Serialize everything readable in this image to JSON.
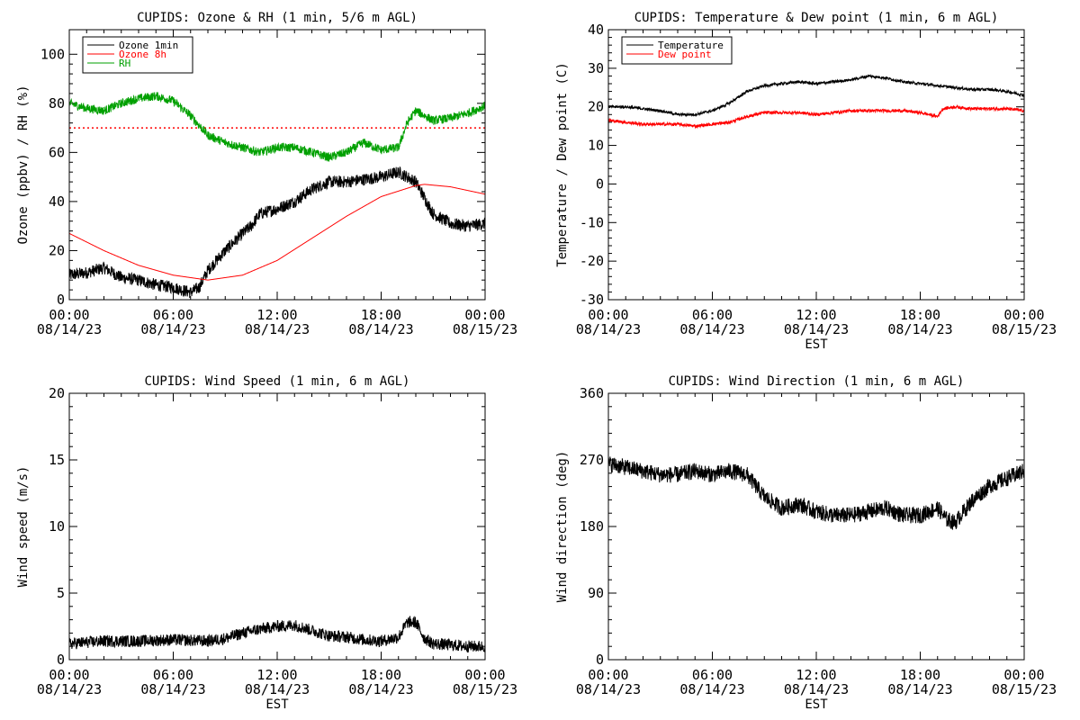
{
  "chart_data": [
    {
      "type": "line",
      "title": "CUPIDS: Ozone & RH (1 min, 5/6 m AGL)",
      "ylabel": "Ozone (ppbv) / RH (%)",
      "xlabel": "",
      "ylim": [
        0,
        110
      ],
      "yticks": [
        0,
        20,
        40,
        60,
        80,
        100
      ],
      "xticks": [
        "00:00\n08/14/23",
        "06:00\n08/14/23",
        "12:00\n08/14/23",
        "18:00\n08/14/23",
        "00:00\n08/15/23"
      ],
      "legend": "top-left",
      "reference_line": {
        "y": 70,
        "style": "dotted",
        "color": "#ff0000"
      },
      "series": [
        {
          "name": "Ozone 1min",
          "color": "#000000",
          "noise": 2.5,
          "x": [
            0,
            1,
            2,
            3,
            4,
            5,
            6,
            7,
            7.5,
            8,
            9,
            10,
            10.5,
            11,
            12,
            13,
            14,
            15,
            16,
            17,
            18,
            19,
            19.5,
            20,
            21,
            22,
            23,
            24
          ],
          "y": [
            10,
            11,
            13,
            9,
            8,
            6,
            5,
            3,
            5,
            12,
            20,
            27,
            30,
            35,
            37,
            40,
            45,
            48,
            48,
            49,
            50,
            52,
            50,
            48,
            35,
            31,
            30,
            31
          ]
        },
        {
          "name": "Ozone 8h",
          "color": "#ff0000",
          "noise": 0,
          "x": [
            0,
            2,
            4,
            6,
            8,
            10,
            12,
            14,
            16,
            18,
            20,
            20.5,
            22,
            24
          ],
          "y": [
            27,
            20,
            14,
            10,
            8,
            10,
            16,
            25,
            34,
            42,
            46.5,
            47,
            46,
            43
          ]
        },
        {
          "name": "RH",
          "color": "#00a000",
          "noise": 1.8,
          "x": [
            0,
            1,
            2,
            3,
            4,
            5,
            6,
            7,
            8,
            9,
            10,
            11,
            12,
            13,
            14,
            15,
            16,
            17,
            18,
            19,
            19.5,
            20,
            21,
            22,
            23,
            24
          ],
          "y": [
            80,
            78,
            77,
            80,
            82,
            83,
            81,
            75,
            67,
            64,
            62,
            60,
            62,
            62,
            60,
            58,
            60,
            64,
            61,
            62,
            72,
            77,
            73,
            74,
            76,
            79
          ]
        }
      ]
    },
    {
      "type": "line",
      "title": "CUPIDS: Temperature & Dew point (1 min, 6 m AGL)",
      "ylabel": "Temperature / Dew point (C)",
      "xlabel": "EST",
      "ylim": [
        -30,
        40
      ],
      "yticks": [
        -30,
        -20,
        -10,
        0,
        10,
        20,
        30,
        40
      ],
      "xticks": [
        "00:00\n08/14/23",
        "06:00\n08/14/23",
        "12:00\n08/14/23",
        "18:00\n08/14/23",
        "00:00\n08/15/23"
      ],
      "legend": "top-left",
      "series": [
        {
          "name": "Temperature",
          "color": "#000000",
          "noise": 0.35,
          "x": [
            0,
            1,
            2,
            3,
            4,
            5,
            6,
            7,
            8,
            9,
            10,
            11,
            12,
            13,
            14,
            15,
            16,
            17,
            18,
            19,
            20,
            21,
            22,
            23,
            24
          ],
          "y": [
            20,
            20,
            19.5,
            19,
            18,
            18,
            19,
            21,
            24,
            25.5,
            26,
            26.5,
            26,
            26.5,
            27,
            28,
            27.5,
            26.5,
            26,
            25.5,
            25,
            24.5,
            24.5,
            24,
            23
          ]
        },
        {
          "name": "Dew point",
          "color": "#ff0000",
          "noise": 0.4,
          "x": [
            0,
            1,
            2,
            3,
            4,
            5,
            6,
            7,
            8,
            9,
            10,
            11,
            12,
            13,
            14,
            15,
            16,
            17,
            18,
            19,
            19.3,
            20,
            21,
            22,
            23,
            24
          ],
          "y": [
            16.5,
            16,
            15.5,
            15.5,
            15.5,
            15,
            15.5,
            16,
            17.5,
            18.5,
            18.5,
            18.5,
            18,
            18.5,
            19,
            19,
            19,
            19,
            18.5,
            17.5,
            19.5,
            20,
            19.5,
            19.5,
            19.5,
            19
          ]
        }
      ]
    },
    {
      "type": "line",
      "title": "CUPIDS: Wind Speed (1 min, 6 m AGL)",
      "ylabel": "Wind speed (m/s)",
      "xlabel": "EST",
      "ylim": [
        0,
        20
      ],
      "yticks": [
        0,
        5,
        10,
        15,
        20
      ],
      "xticks": [
        "00:00\n08/14/23",
        "06:00\n08/14/23",
        "12:00\n08/14/23",
        "18:00\n08/14/23",
        "00:00\n08/15/23"
      ],
      "series": [
        {
          "name": "",
          "color": "#000000",
          "noise": 0.45,
          "x": [
            0,
            2,
            4,
            6,
            8,
            9,
            10,
            11,
            12,
            13,
            14,
            15,
            16,
            17,
            18,
            19,
            19.5,
            20,
            20.5,
            21,
            22,
            23,
            24
          ],
          "y": [
            1.2,
            1.4,
            1.4,
            1.5,
            1.4,
            1.6,
            2,
            2.3,
            2.5,
            2.6,
            2.2,
            1.8,
            1.7,
            1.5,
            1.4,
            1.7,
            2.8,
            2.8,
            1.6,
            1.2,
            1.1,
            1.0,
            1.0
          ]
        }
      ]
    },
    {
      "type": "line",
      "title": "CUPIDS: Wind Direction (1 min, 6 m AGL)",
      "ylabel": "Wind direction (deg)",
      "xlabel": "EST",
      "ylim": [
        0,
        360
      ],
      "yticks": [
        0,
        90,
        180,
        270,
        360
      ],
      "xticks": [
        "00:00\n08/14/23",
        "06:00\n08/14/23",
        "12:00\n08/14/23",
        "18:00\n08/14/23",
        "00:00\n08/15/23"
      ],
      "series": [
        {
          "name": "",
          "color": "#000000",
          "noise": 11,
          "x": [
            0,
            1,
            2,
            3,
            4,
            5,
            6,
            7,
            8,
            9,
            10,
            11,
            12,
            13,
            14,
            15,
            16,
            17,
            18,
            19,
            19.5,
            20,
            21,
            22,
            23,
            24
          ],
          "y": [
            265,
            260,
            255,
            250,
            250,
            255,
            250,
            255,
            250,
            220,
            205,
            210,
            200,
            195,
            195,
            200,
            205,
            195,
            195,
            205,
            190,
            185,
            215,
            235,
            245,
            255
          ]
        }
      ]
    }
  ]
}
